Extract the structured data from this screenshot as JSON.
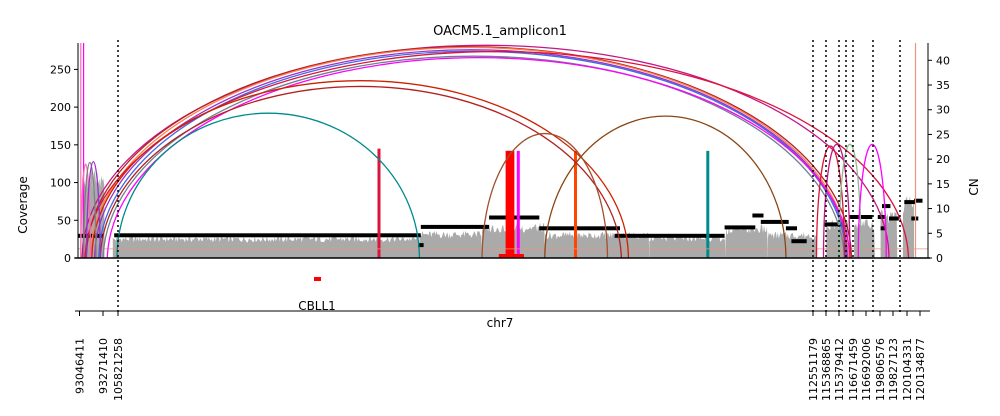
{
  "chart_data": {
    "type": "area",
    "title": "OACM5.1_amplicon1",
    "ylabel": "Coverage",
    "y2label": "CN",
    "xlabel": "chr7",
    "ylim": [
      0,
      285
    ],
    "y2lim": [
      0,
      43.5
    ],
    "yticks": [
      0,
      50,
      100,
      150,
      200,
      250
    ],
    "y2ticks": [
      0,
      5,
      10,
      15,
      20,
      25,
      30,
      35,
      40
    ],
    "xticks": [
      "93046411",
      "93271410",
      "105821258",
      "112551179",
      "115368865",
      "115379412",
      "116671459",
      "116692006",
      "119806576",
      "119827123",
      "120104331",
      "120134877"
    ],
    "gene": "CBLL1",
    "segment_breaks": [
      2,
      3,
      4,
      5,
      6
    ],
    "coverage_segments": [
      {
        "x": [
          0.3,
          1.9
        ],
        "mean": 100
      },
      {
        "x": [
          2.5,
          24.5
        ],
        "mean": 25
      },
      {
        "x": [
          24.5,
          29.0
        ],
        "mean": 31
      },
      {
        "x": [
          29.0,
          33.5
        ],
        "mean": 40
      },
      {
        "x": [
          33.5,
          41.0
        ],
        "mean": 30
      },
      {
        "x": [
          41.0,
          46.5
        ],
        "mean": 26
      },
      {
        "x": [
          46.5,
          49.5
        ],
        "mean": 38
      },
      {
        "x": [
          49.5,
          53.0
        ],
        "mean": 30
      },
      {
        "x": [
          53.7,
          55.3
        ],
        "mean": 45
      },
      {
        "x": [
          55.7,
          57.2
        ],
        "mean": 45
      },
      {
        "x": [
          57.6,
          58.8
        ],
        "mean": 55
      },
      {
        "x": [
          59.2,
          60.0
        ],
        "mean": 70
      }
    ],
    "copy_number_segments": [
      {
        "x": [
          0.0,
          1.8
        ],
        "cn": 4.5
      },
      {
        "x": [
          2.6,
          24.6
        ],
        "cn": 4.6
      },
      {
        "x": [
          24.4,
          24.8
        ],
        "cn": 2.6
      },
      {
        "x": [
          24.6,
          29.5
        ],
        "cn": 6.3
      },
      {
        "x": [
          29.5,
          33.1
        ],
        "cn": 8.2
      },
      {
        "x": [
          33.1,
          38.9
        ],
        "cn": 6.0
      },
      {
        "x": [
          38.5,
          46.4
        ],
        "cn": 4.5
      },
      {
        "x": [
          46.4,
          48.6
        ],
        "cn": 6.2
      },
      {
        "x": [
          48.4,
          49.2
        ],
        "cn": 8.6
      },
      {
        "x": [
          49.0,
          51.0
        ],
        "cn": 7.3
      },
      {
        "x": [
          50.8,
          51.6
        ],
        "cn": 6.0
      },
      {
        "x": [
          51.2,
          52.3
        ],
        "cn": 3.4
      },
      {
        "x": [
          53.5,
          54.9
        ],
        "cn": 6.8
      },
      {
        "x": [
          55.3,
          57.0
        ],
        "cn": 8.3
      },
      {
        "x": [
          57.4,
          57.9
        ],
        "cn": 8.3
      },
      {
        "x": [
          57.6,
          58.0
        ],
        "cn": 6.0
      },
      {
        "x": [
          57.7,
          58.3
        ],
        "cn": 10.5
      },
      {
        "x": [
          58.2,
          58.9
        ],
        "cn": 8.0
      },
      {
        "x": [
          59.3,
          60.1
        ],
        "cn": 11.3
      },
      {
        "x": [
          59.8,
          60.3
        ],
        "cn": 8.0
      },
      {
        "x": [
          60.0,
          60.6
        ],
        "cn": 11.6
      }
    ],
    "breakpoint_arcs": [
      {
        "from": 0.3,
        "to": 58.2,
        "height": 282,
        "color": "#c71585"
      },
      {
        "from": 0.6,
        "to": 55.5,
        "height": 280,
        "color": "#b22222"
      },
      {
        "from": 0.9,
        "to": 55.3,
        "height": 279,
        "color": "#ff7f50"
      },
      {
        "from": 1.2,
        "to": 55.2,
        "height": 276,
        "color": "#9932cc"
      },
      {
        "from": 1.5,
        "to": 55.1,
        "height": 274,
        "color": "#4169e1"
      },
      {
        "from": 1.8,
        "to": 55.0,
        "height": 272,
        "color": "#708090"
      },
      {
        "from": 2.1,
        "to": 55.4,
        "height": 270,
        "color": "#ff00ff"
      },
      {
        "from": 0.5,
        "to": 59.6,
        "height": 278,
        "color": "#dc143c"
      },
      {
        "from": 1.0,
        "to": 39.5,
        "height": 235,
        "color": "#cc2200"
      },
      {
        "from": 1.6,
        "to": 39.0,
        "height": 232,
        "color": "#b22222"
      },
      {
        "from": 2.8,
        "to": 24.5,
        "height": 192,
        "color": "#008b8b"
      },
      {
        "from": 29.0,
        "to": 38.0,
        "height": 165,
        "color": "#a0522d"
      },
      {
        "from": 33.5,
        "to": 50.8,
        "height": 188,
        "color": "#8b4513"
      },
      {
        "from": 53.0,
        "to": 55.0,
        "height": 148,
        "color": "#dc143c"
      },
      {
        "from": 53.5,
        "to": 55.4,
        "height": 150,
        "color": "#c71585"
      },
      {
        "from": 54.6,
        "to": 56.2,
        "height": 150,
        "color": "#8fbc8f"
      },
      {
        "from": 56.0,
        "to": 58.0,
        "height": 150,
        "color": "#ff00ff"
      },
      {
        "from": 0.2,
        "to": 0.9,
        "height": 145,
        "color": "#ff69b4"
      },
      {
        "from": 0.4,
        "to": 1.3,
        "height": 145,
        "color": "#808080"
      },
      {
        "from": 0.6,
        "to": 1.6,
        "height": 145,
        "color": "#9932cc"
      }
    ],
    "foldback_lines": [
      {
        "x": 0.2,
        "height": 285,
        "color": "#ff69b4"
      },
      {
        "x": 0.4,
        "height": 285,
        "color": "#ff00ff"
      },
      {
        "x": 21.6,
        "height": 145,
        "color": "#dc143c"
      },
      {
        "x": 30.8,
        "height": 142,
        "color": "#ff0000"
      },
      {
        "x": 31.0,
        "height": 142,
        "color": "#ff0000"
      },
      {
        "x": 31.2,
        "height": 142,
        "color": "#ff0000"
      },
      {
        "x": 31.6,
        "height": 142,
        "color": "#ff00ff"
      },
      {
        "x": 35.7,
        "height": 142,
        "color": "#ff4500"
      },
      {
        "x": 45.2,
        "height": 142,
        "color": "#008b8b"
      },
      {
        "x": 60.1,
        "height": 285,
        "color": "#e9967a"
      }
    ]
  }
}
